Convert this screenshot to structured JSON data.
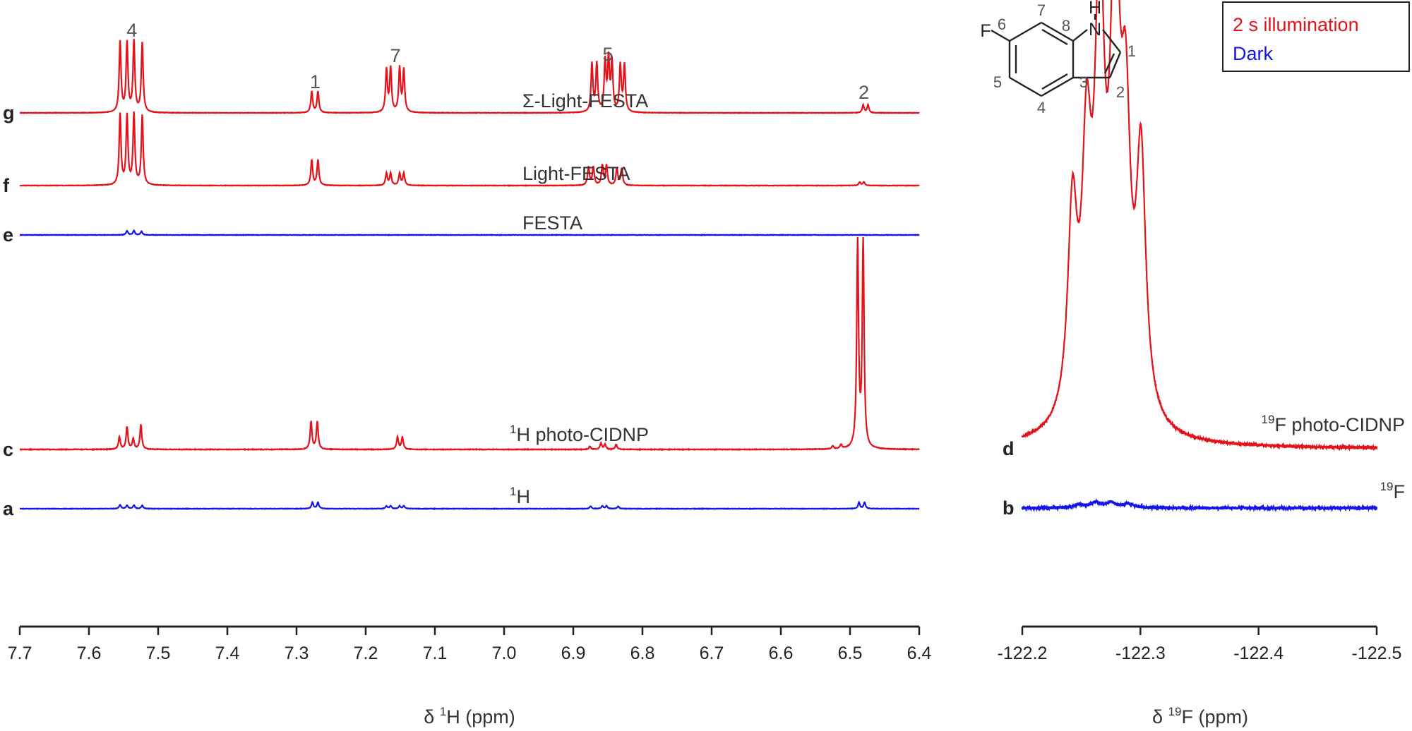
{
  "colors": {
    "light": "#e3121b",
    "dark": "#1414e6",
    "axis": "#222222"
  },
  "legend": {
    "items": [
      {
        "label": "2 s illumination",
        "color": "#e3121b"
      },
      {
        "label": "Dark",
        "color": "#1414e6"
      }
    ]
  },
  "molecule": {
    "name": "6-fluoroindole",
    "atoms": {
      "F": "F",
      "N": "N",
      "H": "H"
    },
    "numbers": [
      "1",
      "2",
      "3",
      "4",
      "5",
      "6",
      "7",
      "8"
    ]
  },
  "chart_data": [
    {
      "type": "line",
      "panel": "1H",
      "xlabel_prefix": "δ ",
      "xlabel_sup": "1",
      "xlabel_suffix": "H (ppm)",
      "xlim": [
        7.7,
        6.4
      ],
      "x_reversed": true,
      "xticks": [
        "7.7",
        "7.6",
        "7.5",
        "7.4",
        "7.3",
        "7.2",
        "7.1",
        "7.0",
        "6.9",
        "6.8",
        "6.7",
        "6.6",
        "6.5",
        "6.4"
      ],
      "peak_labels": [
        {
          "label": "4",
          "x": 7.538
        },
        {
          "label": "1",
          "x": 7.273
        },
        {
          "label": "7",
          "x": 7.157
        },
        {
          "label": "5",
          "x": 6.85
        },
        {
          "label": "2",
          "x": 6.48
        }
      ],
      "series": [
        {
          "letter": "g",
          "name": "Σ-Light-FESTA",
          "label_sup": "",
          "color": "#e3121b",
          "peaks": [
            {
              "x": 7.555,
              "h": 1.0
            },
            {
              "x": 7.545,
              "h": 0.98
            },
            {
              "x": 7.535,
              "h": 1.0
            },
            {
              "x": 7.523,
              "h": 0.98
            },
            {
              "x": 7.278,
              "h": 0.3
            },
            {
              "x": 7.269,
              "h": 0.3
            },
            {
              "x": 7.17,
              "h": 0.6
            },
            {
              "x": 7.164,
              "h": 0.62
            },
            {
              "x": 7.151,
              "h": 0.62
            },
            {
              "x": 7.145,
              "h": 0.6
            },
            {
              "x": 6.873,
              "h": 0.68
            },
            {
              "x": 6.866,
              "h": 0.68
            },
            {
              "x": 6.854,
              "h": 0.7
            },
            {
              "x": 6.849,
              "h": 0.72
            },
            {
              "x": 6.844,
              "h": 0.7
            },
            {
              "x": 6.832,
              "h": 0.66
            },
            {
              "x": 6.826,
              "h": 0.66
            },
            {
              "x": 6.481,
              "h": 0.11
            },
            {
              "x": 6.474,
              "h": 0.11
            }
          ]
        },
        {
          "letter": "f",
          "name": "Light-FESTA",
          "label_sup": "",
          "color": "#e3121b",
          "peaks": [
            {
              "x": 7.555,
              "h": 1.0
            },
            {
              "x": 7.545,
              "h": 0.98
            },
            {
              "x": 7.535,
              "h": 1.0
            },
            {
              "x": 7.523,
              "h": 0.98
            },
            {
              "x": 7.278,
              "h": 0.36
            },
            {
              "x": 7.269,
              "h": 0.36
            },
            {
              "x": 7.17,
              "h": 0.17
            },
            {
              "x": 7.164,
              "h": 0.17
            },
            {
              "x": 7.151,
              "h": 0.17
            },
            {
              "x": 7.145,
              "h": 0.17
            },
            {
              "x": 6.878,
              "h": 0.26
            },
            {
              "x": 6.871,
              "h": 0.26
            },
            {
              "x": 6.858,
              "h": 0.28
            },
            {
              "x": 6.852,
              "h": 0.28
            },
            {
              "x": 6.837,
              "h": 0.24
            },
            {
              "x": 6.83,
              "h": 0.24
            },
            {
              "x": 6.486,
              "h": 0.05
            },
            {
              "x": 6.48,
              "h": 0.05
            }
          ]
        },
        {
          "letter": "e",
          "name": "FESTA",
          "label_sup": "",
          "color": "#1414e6",
          "peaks": [
            {
              "x": 7.545,
              "h": 0.06
            },
            {
              "x": 7.535,
              "h": 0.06
            },
            {
              "x": 7.524,
              "h": 0.05
            }
          ]
        },
        {
          "letter": "c",
          "name": "H photo-CIDNP",
          "label_sup": "1",
          "color": "#e3121b",
          "peaks": [
            {
              "x": 7.556,
              "h": 0.12
            },
            {
              "x": 7.545,
              "h": 0.22
            },
            {
              "x": 7.536,
              "h": 0.1
            },
            {
              "x": 7.525,
              "h": 0.24
            },
            {
              "x": 7.279,
              "h": 0.27
            },
            {
              "x": 7.27,
              "h": 0.27
            },
            {
              "x": 7.154,
              "h": 0.12
            },
            {
              "x": 7.147,
              "h": 0.12
            },
            {
              "x": 6.876,
              "h": 0.03
            },
            {
              "x": 6.86,
              "h": 0.06
            },
            {
              "x": 6.854,
              "h": 0.05
            },
            {
              "x": 6.838,
              "h": 0.05
            },
            {
              "x": 6.525,
              "h": 0.03
            },
            {
              "x": 6.513,
              "h": 0.04
            },
            {
              "x": 6.489,
              "h": 2.0
            },
            {
              "x": 6.481,
              "h": 2.0
            }
          ]
        },
        {
          "letter": "a",
          "name": "H",
          "label_sup": "1",
          "color": "#1414e6",
          "peaks": [
            {
              "x": 7.555,
              "h": 0.055
            },
            {
              "x": 7.545,
              "h": 0.05
            },
            {
              "x": 7.535,
              "h": 0.05
            },
            {
              "x": 7.523,
              "h": 0.045
            },
            {
              "x": 7.277,
              "h": 0.09
            },
            {
              "x": 7.269,
              "h": 0.09
            },
            {
              "x": 7.17,
              "h": 0.04
            },
            {
              "x": 7.164,
              "h": 0.04
            },
            {
              "x": 7.151,
              "h": 0.04
            },
            {
              "x": 7.145,
              "h": 0.04
            },
            {
              "x": 6.875,
              "h": 0.035
            },
            {
              "x": 6.858,
              "h": 0.04
            },
            {
              "x": 6.852,
              "h": 0.04
            },
            {
              "x": 6.835,
              "h": 0.035
            },
            {
              "x": 6.487,
              "h": 0.09
            },
            {
              "x": 6.479,
              "h": 0.09
            }
          ]
        }
      ]
    },
    {
      "type": "line",
      "panel": "19F",
      "xlabel_prefix": "δ ",
      "xlabel_sup": "19",
      "xlabel_suffix": "F (ppm)",
      "xlim": [
        -122.2,
        -122.5
      ],
      "x_reversed": true,
      "xticks": [
        "-122.2",
        "-122.3",
        "-122.4",
        "-122.5"
      ],
      "series": [
        {
          "letter": "d",
          "name": "F photo-CIDNP",
          "label_sup": "19",
          "color": "#e3121b",
          "peaks": [
            {
              "x": -122.3005,
              "h": 1.0
            },
            {
              "x": -122.2875,
              "h": 1.0
            },
            {
              "x": -122.2785,
              "h": 1.65
            },
            {
              "x": -122.2655,
              "h": 1.57
            },
            {
              "x": -122.2545,
              "h": 0.94
            },
            {
              "x": -122.2425,
              "h": 0.8
            }
          ]
        },
        {
          "letter": "b",
          "name": "F",
          "label_sup": "19",
          "color": "#1414e6",
          "peaks": [
            {
              "x": -122.29,
              "h": 0.015
            },
            {
              "x": -122.275,
              "h": 0.02
            },
            {
              "x": -122.262,
              "h": 0.02
            },
            {
              "x": -122.248,
              "h": 0.012
            }
          ]
        }
      ]
    }
  ]
}
